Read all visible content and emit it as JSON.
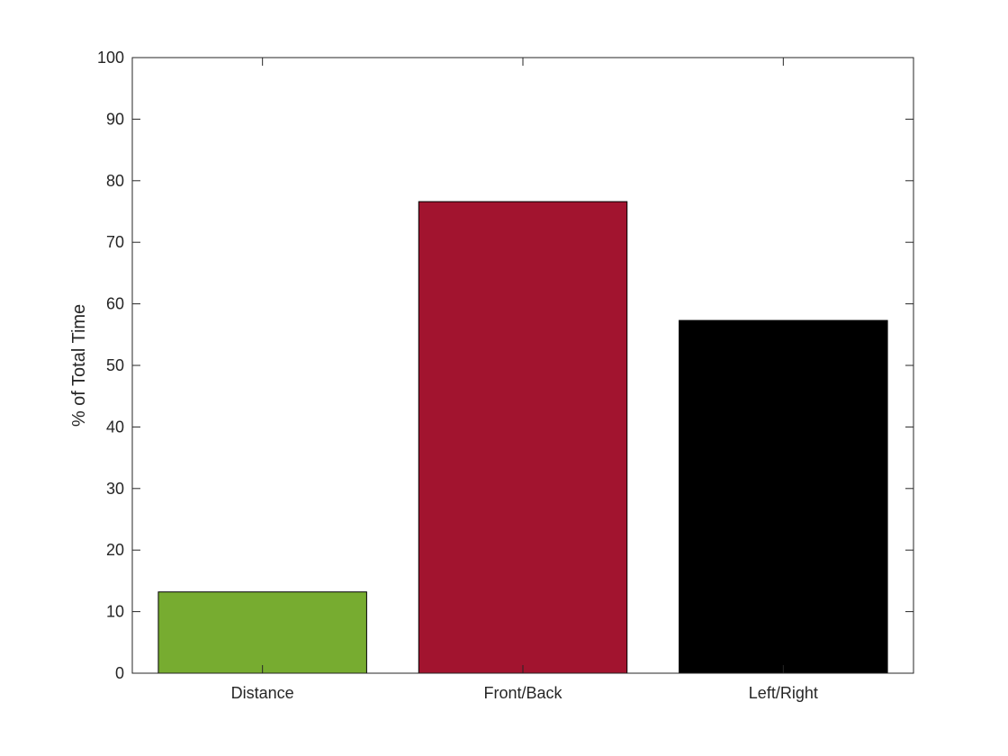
{
  "chart_data": {
    "type": "bar",
    "title": "",
    "xlabel": "",
    "ylabel": "% of Total Time",
    "categories": [
      "Distance",
      "Front/Back",
      "Left/Right"
    ],
    "values": [
      13.2,
      76.6,
      57.3
    ],
    "colors": [
      "#77AC30",
      "#A2142F",
      "#000000"
    ],
    "ylim": [
      0,
      100
    ],
    "yticks": [
      0,
      10,
      20,
      30,
      40,
      50,
      60,
      70,
      80,
      90,
      100
    ],
    "grid": false,
    "legend": "none",
    "box": true
  }
}
